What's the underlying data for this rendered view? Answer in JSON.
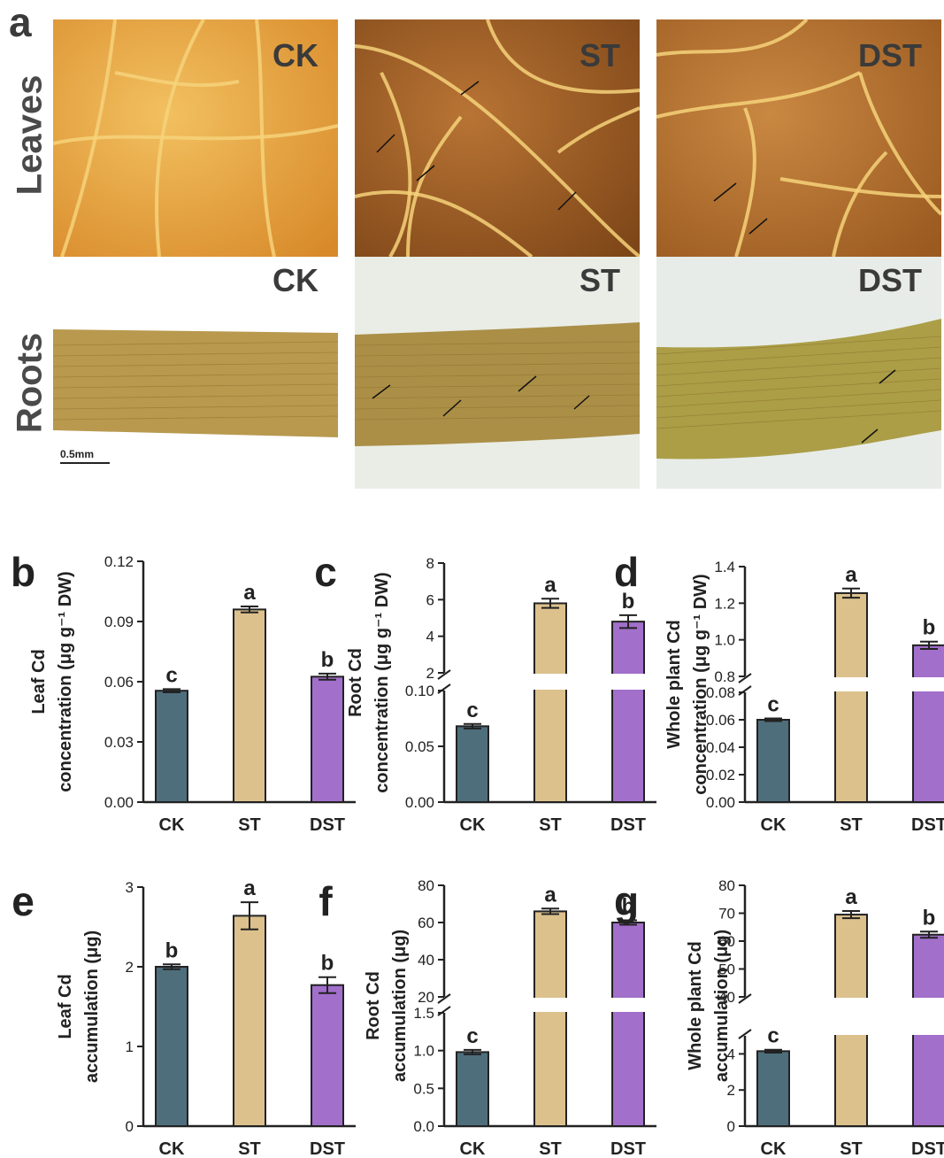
{
  "panel_a": {
    "letter": "a",
    "row_labels": [
      "Leaves",
      "Roots"
    ],
    "scale_bar": "0.5mm",
    "leaves": [
      {
        "label": "CK",
        "colors": [
          "#e8a73a",
          "#f2c060",
          "#d88a2a"
        ]
      },
      {
        "label": "ST",
        "colors": [
          "#9b5a22",
          "#b87434",
          "#7e4618"
        ]
      },
      {
        "label": "DST",
        "colors": [
          "#b46f2c",
          "#c98842",
          "#9a5a20"
        ]
      }
    ],
    "roots": [
      {
        "label": "CK",
        "background": "#ffffff",
        "tissue": "#b49445"
      },
      {
        "label": "ST",
        "background": "#e9ede6",
        "tissue": "#a88a3e"
      },
      {
        "label": "DST",
        "background": "#e8ece8",
        "tissue": "#a89a3e"
      }
    ]
  },
  "colors": {
    "CK": "#4e6e7c",
    "ST": "#dcc18d",
    "DST": "#a26fcb"
  },
  "chart_data": [
    {
      "letter": "b",
      "type": "bar",
      "ylabel_lines": [
        "Leaf Cd",
        "concentration (μg g⁻¹ DW)"
      ],
      "categories": [
        "CK",
        "ST",
        "DST"
      ],
      "values": [
        0.0555,
        0.096,
        0.0625
      ],
      "errors": [
        0.0008,
        0.0015,
        0.0015
      ],
      "letters": [
        "c",
        "a",
        "b"
      ],
      "ylim": [
        0,
        0.12
      ],
      "ticks": [
        "0.00",
        "0.03",
        "0.06",
        "0.09",
        "0.12"
      ]
    },
    {
      "letter": "c",
      "type": "bar",
      "broken_axis": true,
      "ylabel_lines": [
        "Root Cd",
        "concentration (μg g⁻¹ DW)"
      ],
      "categories": [
        "CK",
        "ST",
        "DST"
      ],
      "values": [
        0.068,
        5.8,
        4.8
      ],
      "errors": [
        0.002,
        0.25,
        0.35
      ],
      "letters": [
        "c",
        "a",
        "b"
      ],
      "lower_ylim": [
        0,
        0.1
      ],
      "upper_ylim": [
        2,
        8
      ],
      "lower_ticks": [
        "0.00",
        "0.05",
        "0.10"
      ],
      "upper_ticks": [
        "2",
        "4",
        "6",
        "8"
      ]
    },
    {
      "letter": "d",
      "type": "bar",
      "broken_axis": true,
      "ylabel_lines": [
        "Whole plant Cd",
        "concentration (μg g⁻¹ DW)"
      ],
      "categories": [
        "CK",
        "ST",
        "DST"
      ],
      "values": [
        0.06,
        1.255,
        0.97
      ],
      "errors": [
        0.001,
        0.025,
        0.02
      ],
      "letters": [
        "c",
        "a",
        "b"
      ],
      "lower_ylim": [
        0,
        0.08
      ],
      "upper_ylim": [
        0.8,
        1.4
      ],
      "lower_ticks": [
        "0.00",
        "0.02",
        "0.04",
        "0.06",
        "0.08"
      ],
      "upper_ticks": [
        "0.8",
        "1.0",
        "1.2",
        "1.4"
      ]
    },
    {
      "letter": "e",
      "type": "bar",
      "ylabel_lines": [
        "Leaf Cd",
        "accumulation (μg)"
      ],
      "categories": [
        "CK",
        "ST",
        "DST"
      ],
      "values": [
        2.0,
        2.64,
        1.77
      ],
      "errors": [
        0.03,
        0.17,
        0.1
      ],
      "letters": [
        "b",
        "a",
        "b"
      ],
      "ylim": [
        0,
        3
      ],
      "ticks": [
        "0",
        "1",
        "2",
        "3"
      ]
    },
    {
      "letter": "f",
      "type": "bar",
      "broken_axis": true,
      "ylabel_lines": [
        "Root Cd",
        "accumulation (μg)"
      ],
      "categories": [
        "CK",
        "ST",
        "DST"
      ],
      "values": [
        0.98,
        66,
        60
      ],
      "errors": [
        0.03,
        1.5,
        1.2
      ],
      "letters": [
        "c",
        "a",
        "b"
      ],
      "lower_ylim": [
        0,
        1.5
      ],
      "upper_ylim": [
        20,
        80
      ],
      "lower_ticks": [
        "0.0",
        "0.5",
        "1.0",
        "1.5"
      ],
      "upper_ticks": [
        "20",
        "40",
        "60",
        "80"
      ]
    },
    {
      "letter": "g",
      "type": "bar",
      "broken_axis": true,
      "ylabel_lines": [
        "Whole plant Cd",
        "accumulation (μg)"
      ],
      "categories": [
        "CK",
        "ST",
        "DST"
      ],
      "values": [
        4.15,
        69.5,
        62.3
      ],
      "errors": [
        0.08,
        1.3,
        1.1
      ],
      "letters": [
        "c",
        "a",
        "b"
      ],
      "lower_ylim": [
        0,
        5
      ],
      "upper_ylim": [
        40,
        80
      ],
      "lower_ticks": [
        "0",
        "2",
        "4"
      ],
      "upper_ticks": [
        "40",
        "50",
        "60",
        "70",
        "80"
      ]
    }
  ]
}
